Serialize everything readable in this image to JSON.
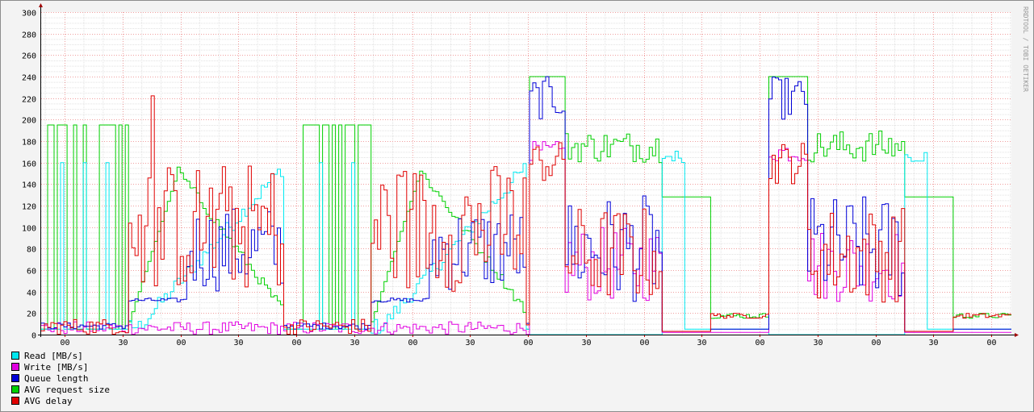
{
  "chart_data": {
    "type": "line",
    "style": "step",
    "watermark": "RRDTOOL / TOBI OETIKER",
    "ylim": [
      0,
      300
    ],
    "y_ticks": [
      "0",
      "20",
      "40",
      "60",
      "80",
      "100",
      "120",
      "140",
      "160",
      "180",
      "200",
      "220",
      "240",
      "260",
      "280",
      "300"
    ],
    "x_tick_labels": [
      "00",
      "30",
      "00",
      "30",
      "00",
      "30",
      "00",
      "30",
      "00",
      "30",
      "00",
      "30",
      "00",
      "30",
      "00",
      "30",
      "00"
    ],
    "legend_placement": "bottom-left",
    "grid": true,
    "series": [
      {
        "name": "Read [MB/s]",
        "color": "#00e8f0",
        "values": []
      },
      {
        "name": "Write [MB/s]",
        "color": "#e000e0",
        "values": []
      },
      {
        "name": "Queue length",
        "color": "#0000d8",
        "values": []
      },
      {
        "name": "AVG request size",
        "color": "#00d000",
        "values": []
      },
      {
        "name": "AVG delay",
        "color": "#e00000",
        "values": []
      }
    ]
  },
  "legend": [
    {
      "label": "Read [MB/s]",
      "color": "#00e8f0"
    },
    {
      "label": "Write [MB/s]",
      "color": "#e000e0"
    },
    {
      "label": "Queue length",
      "color": "#0000d8"
    },
    {
      "label": "AVG request size",
      "color": "#00d000"
    },
    {
      "label": "AVG delay",
      "color": "#e00000"
    }
  ]
}
